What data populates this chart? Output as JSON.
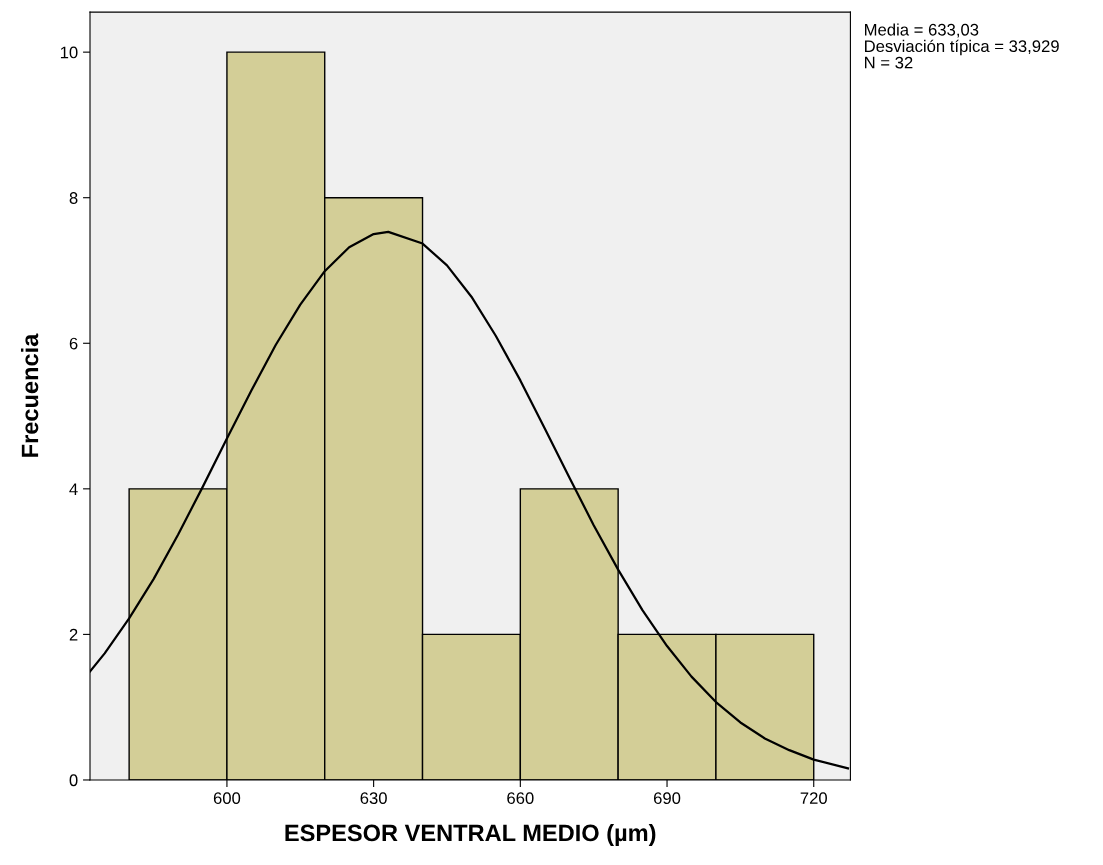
{
  "chart_data": {
    "type": "histogram",
    "xlabel": "ESPESOR VENTRAL MEDIO (µm)",
    "ylabel": "Frecuencia",
    "bins": [
      580,
      600,
      620,
      640,
      660,
      680,
      700,
      720
    ],
    "values": [
      4,
      10,
      8,
      2,
      4,
      2,
      2
    ],
    "color": "#d3ce97",
    "series": [
      {
        "type": "line",
        "color": "#000000",
        "x": [
          572,
          575,
          580,
          585,
          590,
          595,
          600,
          605,
          610,
          615,
          620,
          625,
          630,
          633,
          640,
          645,
          650,
          655,
          660,
          665,
          670,
          675,
          680,
          685,
          690,
          695,
          700,
          705,
          710,
          715,
          720,
          727
        ],
        "values": [
          1.49,
          1.74,
          2.22,
          2.76,
          3.37,
          4.02,
          4.69,
          5.35,
          5.98,
          6.53,
          6.99,
          7.32,
          7.5,
          7.53,
          7.37,
          7.07,
          6.64,
          6.1,
          5.49,
          4.83,
          4.16,
          3.5,
          2.89,
          2.33,
          1.84,
          1.42,
          1.07,
          0.79,
          0.57,
          0.41,
          0.28,
          0.16
        ]
      }
    ],
    "xlim": [
      572,
      727.5
    ],
    "ylim": [
      0,
      10.55
    ],
    "xticks": [
      600,
      630,
      660,
      690,
      720
    ],
    "yticks": [
      0,
      2,
      4,
      6,
      8,
      10
    ],
    "grid": false,
    "legend": false,
    "annotations": [
      "Media = 633,03",
      "Desviación típica = 33,929",
      "N = 32"
    ]
  }
}
